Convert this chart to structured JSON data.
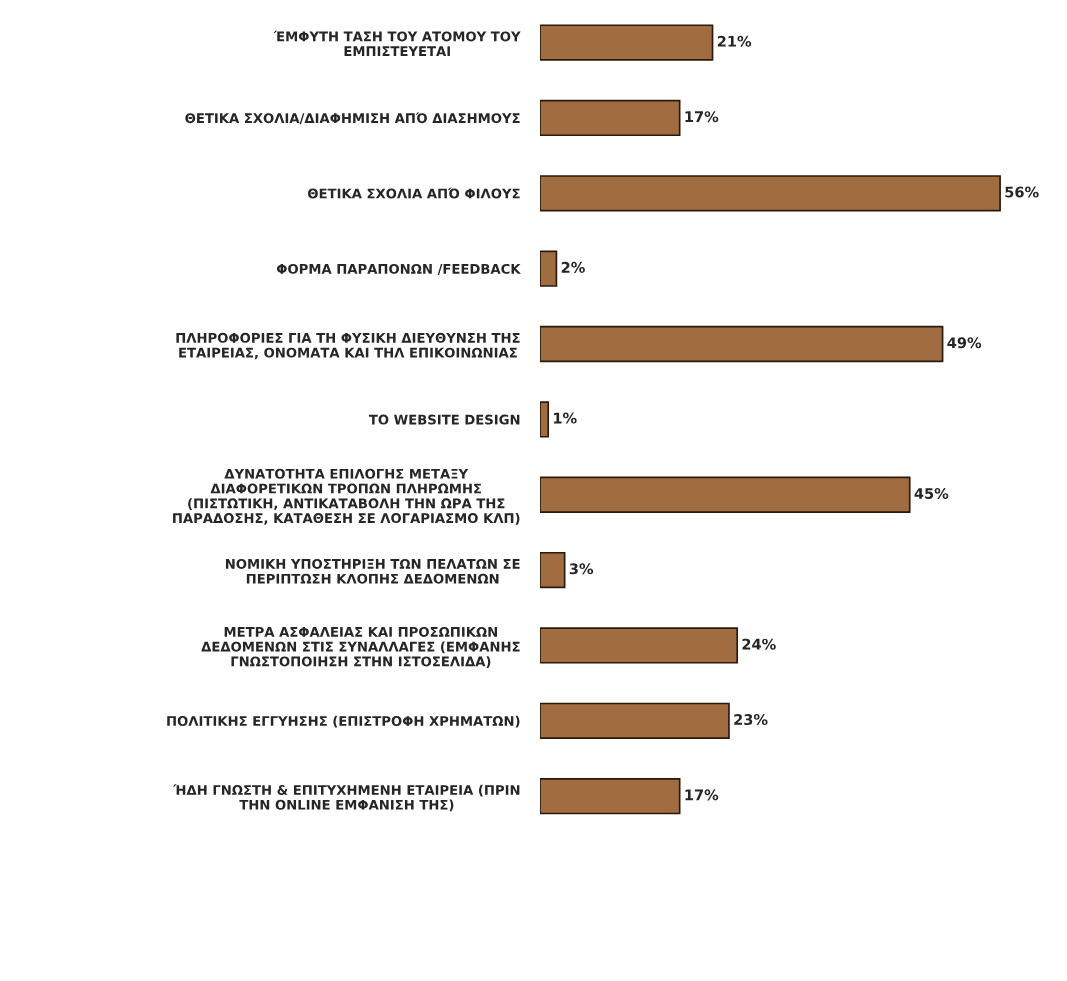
{
  "chart_data": {
    "type": "bar",
    "orientation": "horizontal",
    "categories": [
      "ΈΜΦΥΤΗ ΤΑΣΗ ΤΟΥ ΑΤΟΜΟΥ ΤΟΥ\nΕΜΠΙΣΤΕΥΕΤΑΙ",
      "ΘΕΤΙΚΑ ΣΧΟΛΙΑ/ΔΙΑΦΗΜΙΣΗ ΑΠΌ ΔΙΑΣΗΜΟΥΣ",
      "ΘΕΤΙΚΑ ΣΧΟΛΙΑ ΑΠΌ ΦΙΛΟΥΣ",
      "ΦΟΡΜΑ ΠΑΡΑΠΟΝΩΝ /FEEDBACK",
      "ΠΛΗΡΟΦΟΡΙΕΣ ΓΙΑ ΤΗ ΦΥΣΙΚΗ ΔΙΕΥΘΥΝΣΗ ΤΗΣ\nΕΤΑΙΡΕΙΑΣ, ΟΝΟΜΑΤΑ ΚΑΙ ΤΗΛ ΕΠΙΚΟΙΝΩΝΙΑΣ",
      "ΤΟ WEBSITE DESIGN",
      "ΔΥΝΑΤΟΤΗΤΑ ΕΠΙΛΟΓΗΣ ΜΕΤΑΞΥ\nΔΙΑΦΟΡΕΤΙΚΩΝ ΤΡΟΠΩΝ ΠΛΗΡΩΜΗΣ\n(ΠΙΣΤΩΤΙΚΗ, ΑΝΤΙΚΑΤΑΒΟΛΗ ΤΗΝ ΩΡΑ ΤΗΣ\nΠΑΡΑΔΟΣΗΣ, ΚΑΤΑΘΕΣΗ ΣΕ ΛΟΓΑΡΙΑΣΜΟ ΚΛΠ)",
      "ΝΟΜΙΚΗ ΥΠΟΣΤΗΡΙΞΗ ΤΩΝ ΠΕΛΑΤΩΝ ΣΕ\nΠΕΡΙΠΤΩΣΗ ΚΛΟΠΗΣ ΔΕΔΟΜΕΝΩΝ",
      "ΜΕΤΡΑ ΑΣΦΑΛΕΙΑΣ ΚΑΙ ΠΡΟΣΩΠΙΚΩΝ\nΔΕΔΟΜΕΝΩΝ ΣΤΙΣ ΣΥΝΑΛΛΑΓΕΣ (ΕΜΦΑΝΗΣ\nΓΝΩΣΤΟΠΟΙΗΣΗ ΣΤΗΝ ΙΣΤΟΣΕΛΙΔΑ)",
      "ΠΟΛΙΤΙΚΗΣ ΕΓΓΥΗΣΗΣ (ΕΠΙΣΤΡΟΦΗ ΧΡΗΜΑΤΩΝ)",
      "ΉΔΗ ΓΝΩΣΤΗ & ΕΠΙΤΥΧΗΜΕΝΗ ΕΤΑΙΡΕΙΑ (ΠΡΙΝ\nΤΗΝ ONLINE ΕΜΦΑΝΙΣΗ ΤΗΣ)"
    ],
    "values": [
      21,
      17,
      56,
      2,
      49,
      1,
      45,
      3,
      24,
      23,
      17
    ],
    "value_labels": [
      "21%",
      "17%",
      "56%",
      "2%",
      "49%",
      "1%",
      "45%",
      "3%",
      "24%",
      "23%",
      "17%"
    ],
    "color": "#a06c40",
    "tick_labels": "y",
    "grid": false,
    "legend": false
  }
}
